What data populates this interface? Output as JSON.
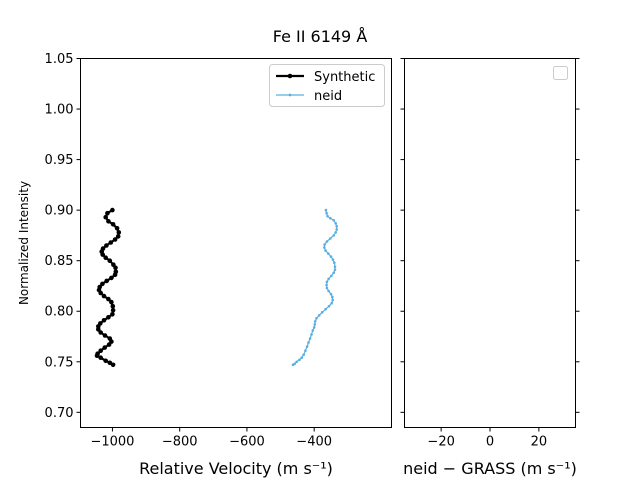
{
  "figure_title": "Fe II 6149 Å",
  "chart_data": [
    {
      "type": "line",
      "title": "Fe II 6149 Å",
      "xlabel": "Relative Velocity (m s⁻¹)",
      "ylabel": "Normalized Intensity",
      "xlim": [
        -1095,
        -170
      ],
      "ylim": [
        0.685,
        1.05
      ],
      "xticks": [
        -1000,
        -800,
        -600,
        -400
      ],
      "xtick_labels": [
        "−1000",
        "−800",
        "−600",
        "−400"
      ],
      "yticks": [
        0.7,
        0.75,
        0.8,
        0.85,
        0.9,
        0.95,
        1.0,
        1.05
      ],
      "ytick_labels": [
        "0.70",
        "0.75",
        "0.80",
        "0.85",
        "0.90",
        "0.95",
        "1.00",
        "1.05"
      ],
      "legend_position": "top-right",
      "series": [
        {
          "name": "Synthetic",
          "color": "#000000",
          "marker": "dot",
          "points": [
            [
              -1000,
              0.9
            ],
            [
              -1015,
              0.897
            ],
            [
              -1020,
              0.893
            ],
            [
              -1012,
              0.889
            ],
            [
              -998,
              0.886
            ],
            [
              -986,
              0.882
            ],
            [
              -981,
              0.878
            ],
            [
              -983,
              0.874
            ],
            [
              -992,
              0.871
            ],
            [
              -1005,
              0.868
            ],
            [
              -1018,
              0.865
            ],
            [
              -1028,
              0.862
            ],
            [
              -1032,
              0.859
            ],
            [
              -1029,
              0.856
            ],
            [
              -1020,
              0.853
            ],
            [
              -1008,
              0.85
            ],
            [
              -997,
              0.846
            ],
            [
              -991,
              0.843
            ],
            [
              -990,
              0.839
            ],
            [
              -992,
              0.836
            ],
            [
              -1003,
              0.833
            ],
            [
              -1017,
              0.83
            ],
            [
              -1030,
              0.827
            ],
            [
              -1038,
              0.824
            ],
            [
              -1040,
              0.821
            ],
            [
              -1035,
              0.818
            ],
            [
              -1025,
              0.815
            ],
            [
              -1012,
              0.812
            ],
            [
              -1003,
              0.809
            ],
            [
              -999,
              0.805
            ],
            [
              -998,
              0.801
            ],
            [
              -1000,
              0.797
            ],
            [
              -1012,
              0.794
            ],
            [
              -1025,
              0.791
            ],
            [
              -1036,
              0.788
            ],
            [
              -1042,
              0.785
            ],
            [
              -1042,
              0.782
            ],
            [
              -1035,
              0.779
            ],
            [
              -1022,
              0.776
            ],
            [
              -1008,
              0.773
            ],
            [
              -1003,
              0.77
            ],
            [
              -1010,
              0.767
            ],
            [
              -1023,
              0.764
            ],
            [
              -1035,
              0.761
            ],
            [
              -1044,
              0.758
            ],
            [
              -1046,
              0.756
            ],
            [
              -1035,
              0.754
            ],
            [
              -1020,
              0.751
            ],
            [
              -1008,
              0.749
            ],
            [
              -998,
              0.747
            ]
          ]
        },
        {
          "name": "neid",
          "color": "#5aafe0",
          "marker": "small-dot",
          "points": [
            [
              -365,
              0.9
            ],
            [
              -363,
              0.897
            ],
            [
              -360,
              0.894
            ],
            [
              -352,
              0.892
            ],
            [
              -342,
              0.89
            ],
            [
              -336,
              0.887
            ],
            [
              -333,
              0.884
            ],
            [
              -333,
              0.881
            ],
            [
              -336,
              0.878
            ],
            [
              -342,
              0.875
            ],
            [
              -352,
              0.872
            ],
            [
              -362,
              0.869
            ],
            [
              -369,
              0.866
            ],
            [
              -370,
              0.863
            ],
            [
              -366,
              0.86
            ],
            [
              -358,
              0.857
            ],
            [
              -350,
              0.854
            ],
            [
              -344,
              0.851
            ],
            [
              -340,
              0.848
            ],
            [
              -338,
              0.844
            ],
            [
              -338,
              0.841
            ],
            [
              -342,
              0.838
            ],
            [
              -349,
              0.835
            ],
            [
              -357,
              0.832
            ],
            [
              -362,
              0.829
            ],
            [
              -363,
              0.826
            ],
            [
              -362,
              0.823
            ],
            [
              -357,
              0.82
            ],
            [
              -350,
              0.817
            ],
            [
              -346,
              0.814
            ],
            [
              -345,
              0.811
            ],
            [
              -348,
              0.808
            ],
            [
              -356,
              0.805
            ],
            [
              -366,
              0.802
            ],
            [
              -376,
              0.799
            ],
            [
              -385,
              0.796
            ],
            [
              -393,
              0.793
            ],
            [
              -397,
              0.79
            ],
            [
              -398,
              0.787
            ],
            [
              -400,
              0.784
            ],
            [
              -404,
              0.781
            ],
            [
              -408,
              0.777
            ],
            [
              -412,
              0.773
            ],
            [
              -417,
              0.769
            ],
            [
              -421,
              0.765
            ],
            [
              -426,
              0.761
            ],
            [
              -431,
              0.757
            ],
            [
              -437,
              0.754
            ],
            [
              -444,
              0.752
            ],
            [
              -452,
              0.75
            ],
            [
              -458,
              0.748
            ],
            [
              -463,
              0.747
            ]
          ]
        }
      ]
    },
    {
      "type": "line",
      "title": "",
      "xlabel": "neid − GRASS (m s⁻¹)",
      "ylabel": "",
      "xlim": [
        -35,
        35
      ],
      "ylim": [
        0.685,
        1.05
      ],
      "xticks": [
        -20,
        0,
        20
      ],
      "xtick_labels": [
        "−20",
        "0",
        "20"
      ],
      "legend_position": "top-right",
      "series": []
    }
  ]
}
